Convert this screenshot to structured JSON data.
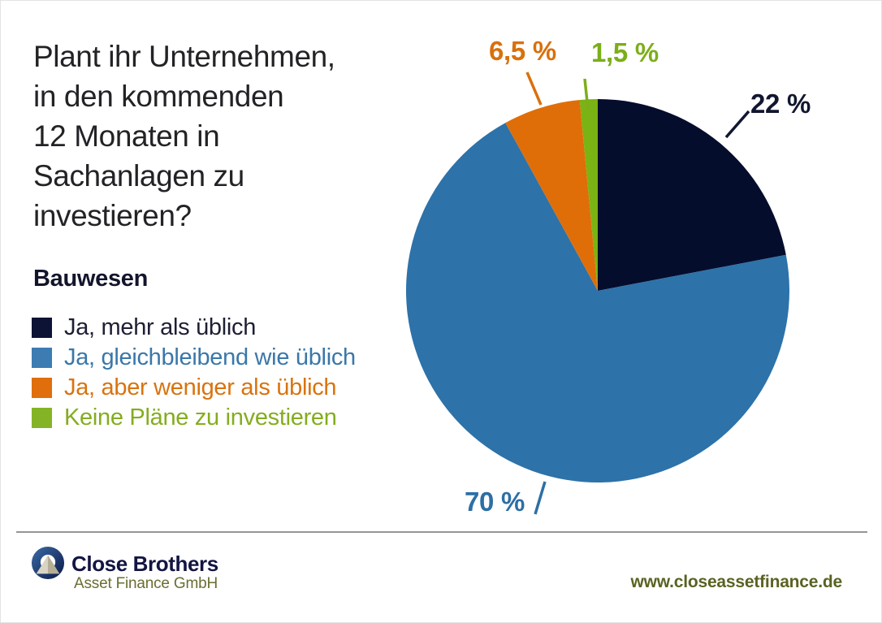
{
  "title": {
    "lines": [
      "Plant ihr Unternehmen,",
      "in den kommenden",
      "12 Monaten in",
      "Sachanlagen zu",
      "investieren?"
    ]
  },
  "subtitle": "Bauwesen",
  "legend": {
    "items": [
      {
        "label": "Ja, mehr als üblich",
        "swatch_color": "#0d1334",
        "text_color": "#1d1f33"
      },
      {
        "label": "Ja, gleichbleibend wie üblich",
        "swatch_color": "#3c7cb3",
        "text_color": "#3a77a9"
      },
      {
        "label": "Ja, aber weniger als üblich",
        "swatch_color": "#e06e0c",
        "text_color": "#d9730f"
      },
      {
        "label": "Keine Pläne zu investieren",
        "swatch_color": "#84b425",
        "text_color": "#84ad1f"
      }
    ]
  },
  "chart_data": {
    "type": "pie",
    "title": "Plant ihr Unternehmen, in den kommenden 12 Monaten in Sachanlagen zu investieren? — Bauwesen",
    "unit": "%",
    "total": 100,
    "start_angle_deg": 0,
    "direction": "clockwise",
    "legend_position": "left",
    "slices": [
      {
        "label": "Ja, mehr als üblich",
        "value": 22,
        "display": "22 %",
        "color": "#050d2d",
        "callout_color": "#11172f"
      },
      {
        "label": "Ja, gleichbleibend wie üblich",
        "value": 70,
        "display": "70 %",
        "color": "#2d72a9",
        "callout_color": "#2d6fa5"
      },
      {
        "label": "Ja, aber weniger als üblich",
        "value": 6.5,
        "display": "6,5 %",
        "color": "#df6e09",
        "callout_color": "#d9700c"
      },
      {
        "label": "Keine Pläne zu investieren",
        "value": 1.5,
        "display": "1,5 %",
        "color": "#7ab314",
        "callout_color": "#7cae1a"
      }
    ]
  },
  "footer": {
    "brand_name": "Close Brothers",
    "brand_subtitle": "Asset Finance GmbH",
    "website": "www.closeassetfinance.de"
  }
}
